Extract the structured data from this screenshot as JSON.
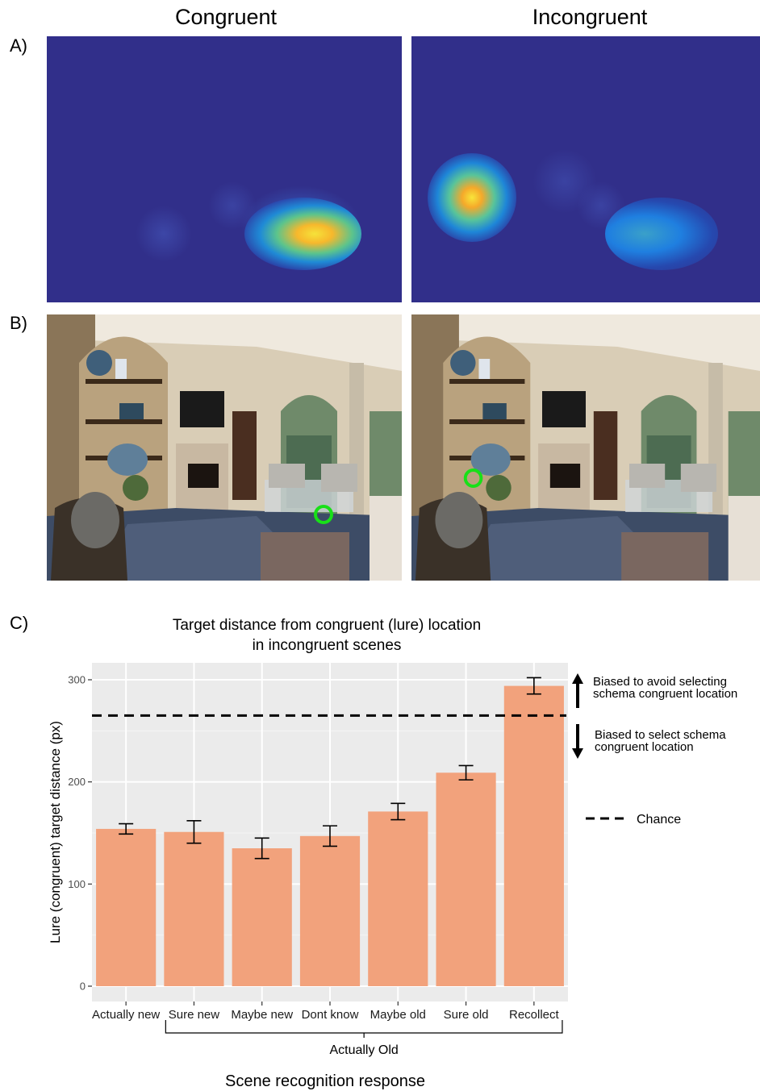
{
  "columns": {
    "left": "Congruent",
    "right": "Incongruent"
  },
  "panels": {
    "a": "A)",
    "b": "B)",
    "c": "C)"
  },
  "chart_data": {
    "type": "bar",
    "title": "Target distance from congruent (lure) location\nin incongruent scenes",
    "title_line1": "Target distance from congruent (lure) location",
    "title_line2": "in incongruent scenes",
    "categories": [
      "Actually new",
      "Sure new",
      "Maybe new",
      "Dont know",
      "Maybe old",
      "Sure old",
      "Recollect"
    ],
    "values": [
      154,
      151,
      135,
      147,
      171,
      209,
      294
    ],
    "error": [
      5,
      11,
      10,
      10,
      8,
      7,
      8
    ],
    "ylim": [
      0,
      315
    ],
    "yticks": [
      0,
      100,
      200,
      300
    ],
    "chance": 265,
    "ylabel": "Lure (congruent) target distance (px)",
    "xlabel": "Scene recognition response",
    "group_label": "Actually Old",
    "bar_color": "#f2a27c",
    "panel_bg": "#ebebeb",
    "annotations": {
      "up_line1": "Biased to avoid selecting",
      "up_line2": "schema congruent location",
      "down_line1": "Biased to select schema",
      "down_line2": "congruent location"
    },
    "legend": {
      "label": "Chance"
    }
  }
}
